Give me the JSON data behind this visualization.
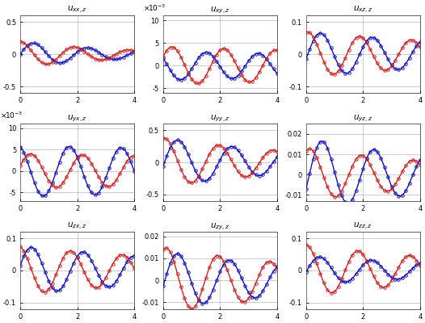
{
  "titles": [
    "u_{xx,z}",
    "u_{xy,z}",
    "u_{xz,z}",
    "u_{yx,z}",
    "u_{yy,z}",
    "u_{yz,z}",
    "u_{zx,z}",
    "u_{zy,z}",
    "u_{zz,z}"
  ],
  "xlim": [
    0,
    4
  ],
  "xticks": [
    0,
    2,
    4
  ],
  "blue_color": "#1111bb",
  "red_color": "#cc2222",
  "marker": "o",
  "markersize": 2.5,
  "linewidth": 1.0,
  "background_color": "#ffffff",
  "grid_color": "#999999",
  "fig_width": 5.26,
  "fig_height": 4.0,
  "dpi": 100,
  "panels": [
    {
      "idx": 0,
      "ylim": [
        -0.6,
        0.6
      ],
      "yticks": [
        -0.5,
        0,
        0.5
      ],
      "use_scientific": false,
      "blue": {
        "amp": 0.2,
        "phase": 0.0,
        "freq": 1.05,
        "decay": 0.28
      },
      "red": {
        "amp": 0.2,
        "phase": 1.55,
        "freq": 1.05,
        "decay": 0.28
      }
    },
    {
      "idx": 1,
      "ylim": [
        -0.006,
        0.011
      ],
      "yticks": [
        -0.005,
        0,
        0.005,
        0.01
      ],
      "use_scientific": true,
      "sci_label": "x 10^{-3}",
      "blue": {
        "amp": 0.0032,
        "phase": 2.6,
        "freq": 1.1,
        "decay": 0.05
      },
      "red": {
        "amp": 0.0042,
        "phase": 0.5,
        "freq": 1.1,
        "decay": 0.05
      }
    },
    {
      "idx": 2,
      "ylim": [
        -0.12,
        0.12
      ],
      "yticks": [
        -0.1,
        0,
        0.1
      ],
      "use_scientific": false,
      "blue": {
        "amp": 0.07,
        "phase": -0.2,
        "freq": 1.1,
        "decay": 0.12
      },
      "red": {
        "amp": 0.07,
        "phase": 1.35,
        "freq": 1.1,
        "decay": 0.12
      }
    },
    {
      "idx": 3,
      "ylim": [
        -0.007,
        0.011
      ],
      "yticks": [
        -0.005,
        0,
        0.005,
        0.01
      ],
      "use_scientific": true,
      "sci_label": "x 10^{-3}",
      "blue": {
        "amp": 0.006,
        "phase": 1.9,
        "freq": 1.1,
        "decay": 0.03
      },
      "red": {
        "amp": 0.004,
        "phase": 0.3,
        "freq": 1.1,
        "decay": 0.03
      }
    },
    {
      "idx": 4,
      "ylim": [
        -0.6,
        0.6
      ],
      "yticks": [
        -0.5,
        0,
        0.5
      ],
      "use_scientific": false,
      "blue": {
        "amp": 0.38,
        "phase": -0.15,
        "freq": 1.05,
        "decay": 0.18
      },
      "red": {
        "amp": 0.38,
        "phase": 1.4,
        "freq": 1.05,
        "decay": 0.18
      }
    },
    {
      "idx": 5,
      "ylim": [
        -0.013,
        0.025
      ],
      "yticks": [
        -0.01,
        0,
        0.01,
        0.02
      ],
      "use_scientific": false,
      "blue": {
        "amp": 0.018,
        "phase": -0.4,
        "freq": 1.1,
        "decay": 0.16
      },
      "red": {
        "amp": 0.013,
        "phase": 1.1,
        "freq": 1.1,
        "decay": 0.16
      }
    },
    {
      "idx": 6,
      "ylim": [
        -0.12,
        0.12
      ],
      "yticks": [
        -0.1,
        0,
        0.1
      ],
      "use_scientific": false,
      "blue": {
        "amp": 0.075,
        "phase": 0.2,
        "freq": 1.1,
        "decay": 0.12
      },
      "red": {
        "amp": 0.075,
        "phase": 1.75,
        "freq": 1.1,
        "decay": 0.12
      }
    },
    {
      "idx": 7,
      "ylim": [
        -0.013,
        0.022
      ],
      "yticks": [
        -0.01,
        0,
        0.01,
        0.02
      ],
      "use_scientific": false,
      "blue": {
        "amp": 0.013,
        "phase": -0.2,
        "freq": 1.1,
        "decay": 0.15
      },
      "red": {
        "amp": 0.015,
        "phase": 1.2,
        "freq": 1.1,
        "decay": 0.15
      }
    },
    {
      "idx": 8,
      "ylim": [
        -0.12,
        0.12
      ],
      "yticks": [
        -0.1,
        0,
        0.1
      ],
      "use_scientific": false,
      "blue": {
        "amp": 0.045,
        "phase": -0.1,
        "freq": 1.1,
        "decay": 0.15
      },
      "red": {
        "amp": 0.08,
        "phase": 1.55,
        "freq": 1.1,
        "decay": 0.15
      }
    }
  ]
}
